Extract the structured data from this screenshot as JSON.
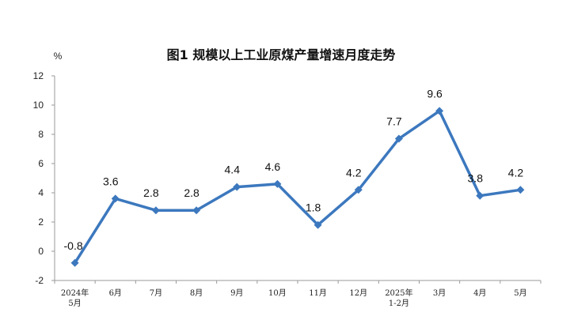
{
  "chart_data": {
    "type": "line",
    "title": "图1  规模以上工业原煤产量增速月度走势",
    "ylabel": "%",
    "xlabel": "",
    "ylim": [
      -2,
      12
    ],
    "yticks": [
      "12",
      "10",
      "8",
      "6",
      "4",
      "2",
      "0",
      "-2"
    ],
    "categories": [
      [
        "2024年",
        "5月"
      ],
      [
        "6月"
      ],
      [
        "7月"
      ],
      [
        "8月"
      ],
      [
        "9月"
      ],
      [
        "10月"
      ],
      [
        "11月"
      ],
      [
        "12月"
      ],
      [
        "2025年",
        "1-2月"
      ],
      [
        "3月"
      ],
      [
        "4月"
      ],
      [
        "5月"
      ]
    ],
    "series": [
      {
        "values": [
          -0.8,
          3.6,
          2.8,
          2.8,
          4.4,
          4.6,
          1.8,
          4.2,
          7.7,
          9.6,
          3.8,
          4.2
        ],
        "labels": [
          "-0.8",
          "3.6",
          "2.8",
          "2.8",
          "4.4",
          "4.6",
          "1.8",
          "4.2",
          "7.7",
          "9.6",
          "3.8",
          "4.2"
        ],
        "color": "#3C78BE"
      }
    ],
    "grid": false,
    "legend": "none"
  }
}
